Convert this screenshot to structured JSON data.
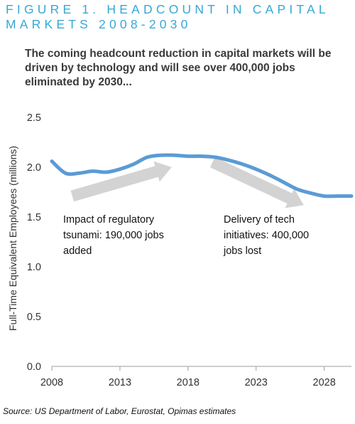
{
  "figure_title": "FIGURE 1. HEADCOUNT IN CAPITAL MARKETS 2008-2030",
  "subtitle": "The coming headcount reduction in capital markets will be driven by technology and will see over 400,000 jobs eliminated by 2030...",
  "source": "Source: US Department of Labor, Eurostat, Opimas estimates",
  "colors": {
    "title": "#35a8d6",
    "line": "#5b9bd5",
    "arrow": "#d3d3d3",
    "axis": "#9e9e9e"
  },
  "chart_data": {
    "type": "line",
    "title": "",
    "xlabel": "",
    "ylabel": "Full-Time Equivalent Employees (millions)",
    "xlim": [
      2008,
      2030
    ],
    "ylim": [
      0,
      2.5
    ],
    "x_ticks": [
      "2008",
      "2013",
      "2018",
      "2023",
      "2028"
    ],
    "y_ticks": [
      "0.0",
      "0.5",
      "1.0",
      "1.5",
      "2.0",
      "2.5"
    ],
    "grid": false,
    "series": [
      {
        "x": [
          2008,
          2009,
          2010,
          2011,
          2012,
          2013,
          2014,
          2015,
          2016,
          2017,
          2018,
          2019,
          2020,
          2021,
          2022,
          2023,
          2024,
          2025,
          2026,
          2027,
          2028,
          2029,
          2030
        ],
        "values": [
          2.06,
          1.94,
          1.94,
          1.96,
          1.95,
          1.98,
          2.03,
          2.1,
          2.12,
          2.12,
          2.11,
          2.11,
          2.1,
          2.07,
          2.03,
          1.98,
          1.92,
          1.85,
          1.78,
          1.74,
          1.71,
          1.71,
          1.71
        ]
      }
    ],
    "annotations": [
      {
        "id": "regulatory",
        "lines": [
          "Impact of regulatory",
          "tsunami: 190,000 jobs",
          "added"
        ],
        "arrow_from": [
          2009.5,
          1.71
        ],
        "arrow_to": [
          2016.8,
          2.0
        ]
      },
      {
        "id": "tech",
        "lines": [
          "Delivery of tech",
          "initiatives: 400,000",
          "jobs lost"
        ],
        "arrow_from": [
          2019.8,
          2.05
        ],
        "arrow_to": [
          2026.5,
          1.62
        ]
      }
    ]
  }
}
